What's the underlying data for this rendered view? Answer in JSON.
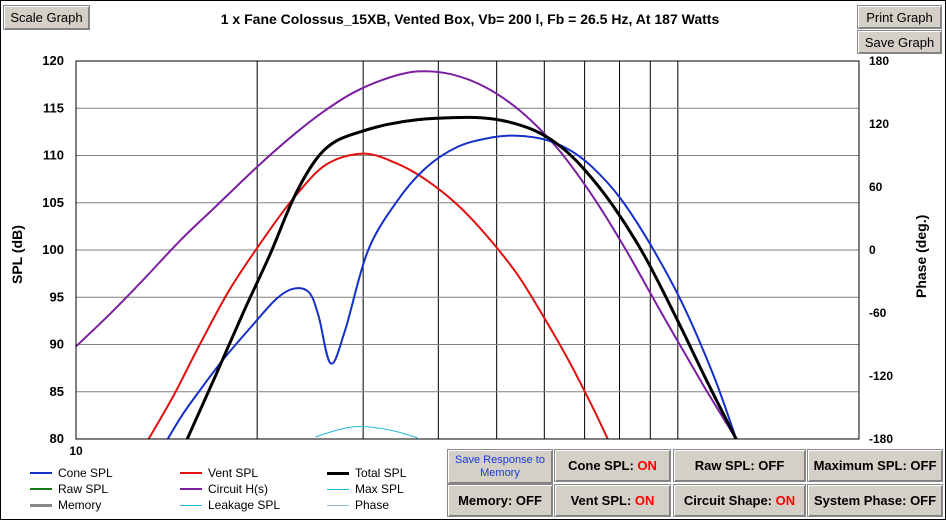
{
  "buttons": {
    "scale": "Scale Graph",
    "print": "Print Graph",
    "save": "Save Graph"
  },
  "chart_data": {
    "type": "line",
    "title": "1 x Fane Colossus_15XB,  Vented Box, Vb= 200 l,  Fb = 26.5 Hz,  At 187 Watts",
    "ylabel": "SPL (dB)",
    "y2label": "Phase (deg.)",
    "xscale": "log",
    "xlim": [
      10,
      200
    ],
    "ylim": [
      80,
      120
    ],
    "y2lim": [
      -180,
      180
    ],
    "x_tick_labels": [
      "10"
    ],
    "y_ticks": [
      120,
      115,
      110,
      105,
      100,
      95,
      90,
      85,
      80
    ],
    "y2_ticks": [
      180,
      120,
      60,
      0,
      -60,
      -120,
      -180
    ],
    "grid": true,
    "series": [
      {
        "name": "Circuit H(s)",
        "color": "#7b1fa2",
        "width": 2,
        "x": [
          10,
          11.5,
          13,
          15,
          17,
          20,
          23,
          26,
          29,
          33,
          37,
          42,
          48,
          55,
          63,
          72,
          82,
          95,
          110,
          125
        ],
        "y": [
          89.8,
          93.5,
          97.0,
          101.2,
          104.5,
          108.8,
          112.2,
          114.8,
          116.7,
          118.2,
          118.9,
          118.6,
          117.2,
          114.6,
          110.8,
          105.8,
          100.0,
          92.8,
          85.8,
          80
        ]
      },
      {
        "name": "Vent SPL",
        "color": "#e01010",
        "width": 2,
        "x": [
          13.2,
          14.5,
          16,
          18,
          20.5,
          23,
          26,
          30,
          34,
          38,
          43,
          48,
          54,
          60,
          66,
          72,
          76.5
        ],
        "y": [
          80,
          84.5,
          89.8,
          95.8,
          101.2,
          105.5,
          109.0,
          110.2,
          109.2,
          107.5,
          104.8,
          101.6,
          97.5,
          92.8,
          88.2,
          83.5,
          80
        ]
      },
      {
        "name": "Cone SPL",
        "color": "#1530c8",
        "width": 2,
        "x": [
          14.2,
          15,
          16,
          17.5,
          19.5,
          21.5,
          23,
          24.4,
          25.3,
          26.5,
          28,
          30.5,
          34,
          38,
          43,
          49,
          54,
          60,
          66,
          72,
          80,
          90,
          102,
          115,
          125
        ],
        "y": [
          80,
          82.5,
          85.0,
          88.3,
          91.8,
          94.8,
          95.9,
          95.5,
          93.0,
          88.0,
          91.5,
          99.8,
          105.0,
          108.6,
          110.9,
          111.9,
          112.1,
          111.7,
          110.6,
          108.8,
          105.6,
          100.6,
          94.2,
          86.5,
          80
        ]
      },
      {
        "name": "Total SPL",
        "color": "#000000",
        "width": 3,
        "x": [
          15.3,
          17,
          19,
          21,
          23,
          25,
          27,
          30,
          33,
          37,
          42,
          47,
          52,
          58,
          64,
          70,
          78,
          88,
          100,
          112,
          125
        ],
        "y": [
          80,
          86.5,
          93.5,
          99.5,
          105.5,
          109.5,
          111.5,
          112.6,
          113.3,
          113.8,
          114.0,
          114.0,
          113.6,
          112.6,
          110.9,
          108.5,
          104.7,
          99.4,
          92.5,
          86.0,
          80
        ]
      },
      {
        "name": "Leakage SPL",
        "color": "#22b8d8",
        "width": 1,
        "x": [
          25,
          27,
          29,
          31.5,
          34,
          37
        ],
        "y": [
          80.2,
          80.9,
          81.3,
          81.2,
          80.8,
          80.1
        ]
      }
    ],
    "legend": [
      {
        "label": "Cone SPL",
        "color": "#1530c8",
        "width": 2
      },
      {
        "label": "Vent SPL",
        "color": "#e01010",
        "width": 2
      },
      {
        "label": "Total SPL",
        "color": "#000000",
        "width": 3
      },
      {
        "label": "Raw SPL",
        "color": "#1a7a1a",
        "width": 2
      },
      {
        "label": "Circuit H(s)",
        "color": "#7b1fa2",
        "width": 2
      },
      {
        "label": "Max SPL",
        "color": "#22b8d8",
        "width": 1
      },
      {
        "label": "Memory",
        "color": "#8a8a8a",
        "width": 3
      },
      {
        "label": "Leakage SPL",
        "color": "#22b8d8",
        "width": 1
      },
      {
        "label": "Phase",
        "color": "#8fbcd8",
        "width": 1
      }
    ]
  },
  "controls": {
    "save_response": "Save Response to Memory",
    "cone_spl": {
      "label": "Cone SPL:",
      "state": "ON"
    },
    "raw_spl": {
      "label": "Raw SPL:",
      "state": "OFF"
    },
    "maximum_spl": {
      "label": "Maximum SPL:",
      "state": "OFF"
    },
    "memory": {
      "label": "Memory:",
      "state": "OFF"
    },
    "vent_spl": {
      "label": "Vent SPL:",
      "state": "ON"
    },
    "circuit_shape": {
      "label": "Circuit Shape:",
      "state": "ON"
    },
    "system_phase": {
      "label": "System Phase:",
      "state": "OFF"
    }
  }
}
